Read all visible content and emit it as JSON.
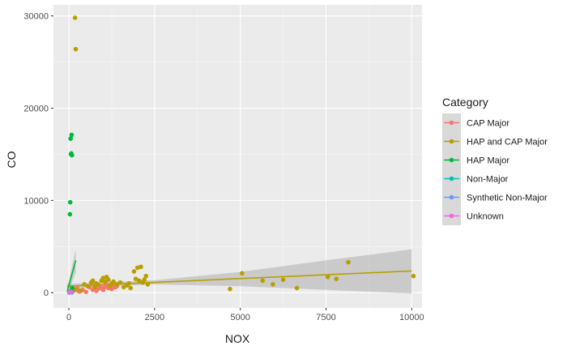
{
  "chart_data": {
    "type": "scatter",
    "xlabel": "NOX",
    "ylabel": "CO",
    "xlim": [
      -450,
      10300
    ],
    "ylim": [
      -1650,
      31200
    ],
    "x_ticks": [
      0,
      2500,
      5000,
      7500,
      10000
    ],
    "y_ticks": [
      0,
      10000,
      20000,
      30000
    ],
    "x_tick_labels": [
      "0",
      "2500",
      "5000",
      "7500",
      "10000"
    ],
    "y_tick_labels": [
      "0",
      "10000",
      "20000",
      "30000"
    ],
    "background": "#ebebeb",
    "grid": true,
    "legend": {
      "title": "Category",
      "placement": "right"
    },
    "series": [
      {
        "name": "CAP Major",
        "color": "#f8766d",
        "points": [
          [
            60,
            150
          ],
          [
            150,
            250
          ],
          [
            250,
            450
          ],
          [
            300,
            120
          ],
          [
            400,
            300
          ],
          [
            500,
            80
          ],
          [
            600,
            600
          ],
          [
            700,
            300
          ],
          [
            750,
            800
          ],
          [
            800,
            200
          ],
          [
            850,
            400
          ],
          [
            900,
            700
          ],
          [
            950,
            500
          ],
          [
            1000,
            300
          ],
          [
            1050,
            650
          ],
          [
            1100,
            900
          ],
          [
            1150,
            500
          ],
          [
            1200,
            700
          ],
          [
            1250,
            400
          ],
          [
            1300,
            800
          ],
          [
            1350,
            600
          ],
          [
            1400,
            700
          ],
          [
            100,
            500
          ],
          [
            180,
            350
          ]
        ],
        "trend": null
      },
      {
        "name": "HAP and CAP Major",
        "color": "#b79f00",
        "points": [
          [
            180,
            29800
          ],
          [
            200,
            26400
          ],
          [
            100,
            500
          ],
          [
            200,
            300
          ],
          [
            350,
            200
          ],
          [
            450,
            900
          ],
          [
            550,
            700
          ],
          [
            650,
            1100
          ],
          [
            700,
            1300
          ],
          [
            750,
            600
          ],
          [
            800,
            1000
          ],
          [
            850,
            900
          ],
          [
            950,
            1300
          ],
          [
            1000,
            1600
          ],
          [
            1050,
            1200
          ],
          [
            1100,
            1700
          ],
          [
            1150,
            1400
          ],
          [
            1200,
            700
          ],
          [
            1250,
            1000
          ],
          [
            1300,
            1200
          ],
          [
            1400,
            900
          ],
          [
            1500,
            1100
          ],
          [
            1600,
            600
          ],
          [
            1700,
            800
          ],
          [
            1750,
            1000
          ],
          [
            1800,
            500
          ],
          [
            1900,
            2300
          ],
          [
            1950,
            1500
          ],
          [
            2000,
            2700
          ],
          [
            2050,
            1300
          ],
          [
            2100,
            2800
          ],
          [
            2150,
            1100
          ],
          [
            2200,
            1400
          ],
          [
            2250,
            1800
          ],
          [
            2300,
            900
          ],
          [
            4700,
            400
          ],
          [
            5050,
            2100
          ],
          [
            5650,
            1300
          ],
          [
            5950,
            900
          ],
          [
            6250,
            1400
          ],
          [
            6650,
            500
          ],
          [
            7550,
            1700
          ],
          [
            7800,
            1500
          ],
          [
            8150,
            3300
          ],
          [
            10050,
            1800
          ]
        ],
        "trend": {
          "x": [
            -50,
            10000
          ],
          "y": [
            700,
            2350
          ],
          "band_lower": [
            [
              -50,
              450
            ],
            [
              2500,
              900
            ],
            [
              5000,
              700
            ],
            [
              7500,
              300
            ],
            [
              10000,
              -100
            ]
          ],
          "band_upper": [
            [
              -50,
              950
            ],
            [
              2500,
              1350
            ],
            [
              5000,
              2250
            ],
            [
              7500,
              3500
            ],
            [
              10000,
              4700
            ]
          ]
        }
      },
      {
        "name": "HAP Major",
        "color": "#00ba38",
        "points": [
          [
            50,
            16700
          ],
          [
            80,
            17100
          ],
          [
            60,
            15000
          ],
          [
            90,
            14900
          ],
          [
            70,
            15100
          ],
          [
            40,
            9800
          ],
          [
            30,
            8500
          ],
          [
            100,
            500
          ],
          [
            60,
            200
          ]
        ],
        "trend": {
          "x": [
            -50,
            200
          ],
          "y": [
            100,
            3500
          ],
          "band_lower": [
            [
              -50,
              -300
            ],
            [
              200,
              2200
            ]
          ],
          "band_upper": [
            [
              -50,
              500
            ],
            [
              200,
              4700
            ]
          ]
        }
      },
      {
        "name": "Non-Major",
        "color": "#00c0b8",
        "points": [
          [
            20,
            50
          ],
          [
            40,
            30
          ],
          [
            60,
            80
          ],
          [
            90,
            40
          ]
        ],
        "trend": null
      },
      {
        "name": "Synthetic Non-Major",
        "color": "#619cff",
        "points": [
          [
            10,
            20
          ],
          [
            30,
            10
          ],
          [
            50,
            40
          ]
        ],
        "trend": null
      },
      {
        "name": "Unknown",
        "color": "#f564e3",
        "points": [
          [
            20,
            30
          ],
          [
            70,
            90
          ]
        ],
        "trend": null
      }
    ]
  }
}
